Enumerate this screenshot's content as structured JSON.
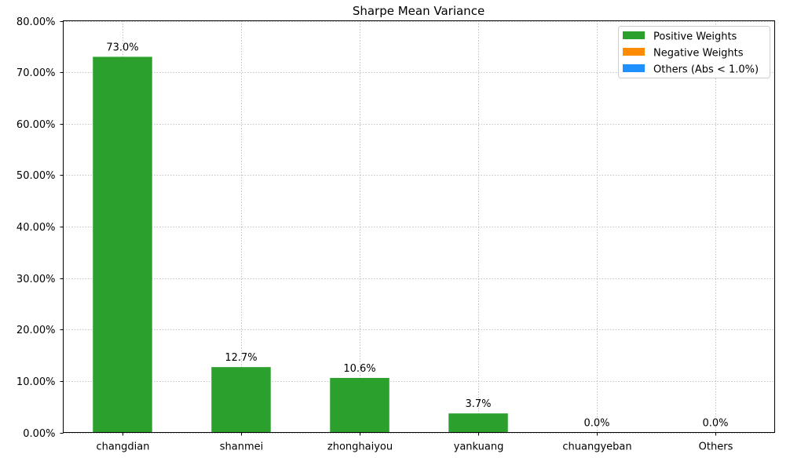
{
  "chart_data": {
    "type": "bar",
    "title": "Sharpe Mean Variance",
    "xlabel": "",
    "ylabel": "",
    "categories": [
      "changdian",
      "shanmei",
      "zhonghaiyou",
      "yankuang",
      "chuangyeban",
      "Others"
    ],
    "values": [
      73.0,
      12.7,
      10.6,
      3.7,
      0.0,
      0.0
    ],
    "data_labels": [
      "73.0%",
      "12.7%",
      "10.6%",
      "3.7%",
      "0.0%",
      "0.0%"
    ],
    "ylim": [
      0,
      80
    ],
    "yticks": [
      0,
      10,
      20,
      30,
      40,
      50,
      60,
      70,
      80
    ],
    "ytick_labels": [
      "0.00%",
      "10.00%",
      "20.00%",
      "30.00%",
      "40.00%",
      "50.00%",
      "60.00%",
      "70.00%",
      "80.00%"
    ],
    "grid": true,
    "legend_position": "top-right",
    "legend": [
      {
        "label": "Positive Weights",
        "color": "#2ca02c"
      },
      {
        "label": "Negative Weights",
        "color": "#ff8c00"
      },
      {
        "label": "Others (Abs < 1.0%)",
        "color": "#1e90ff"
      }
    ],
    "bar_color": "#2ca02c"
  }
}
